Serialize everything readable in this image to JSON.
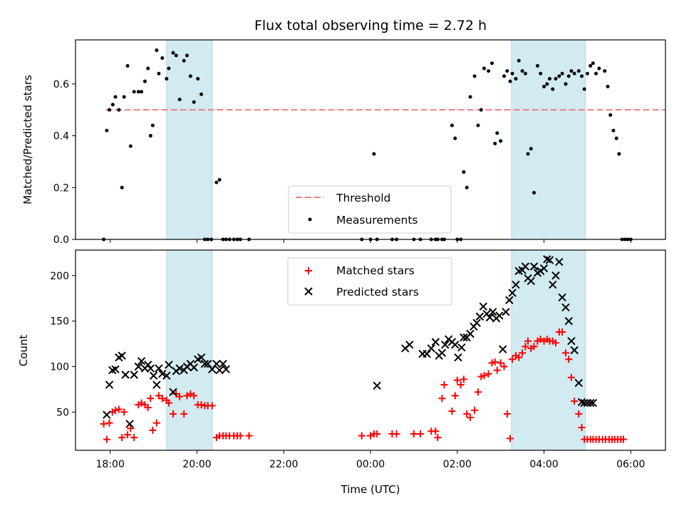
{
  "chart_data": [
    {
      "type": "scatter",
      "title": "Flux total observing time = 2.72 h",
      "xlabel": "",
      "ylabel": "Matched/Predicted stars",
      "xlim_hours": [
        17.2,
        30.8
      ],
      "ylim": [
        0,
        0.77
      ],
      "yticks": [
        0.0,
        0.2,
        0.4,
        0.6
      ],
      "ytick_labels": [
        "0.0",
        "0.2",
        "0.4",
        "0.6"
      ],
      "threshold": {
        "name": "Threshold",
        "value": 0.5,
        "x_range": [
          17.9,
          30.8
        ],
        "color": "#f08080"
      },
      "shaded_regions": [
        [
          19.3,
          20.35
        ],
        [
          27.25,
          28.95
        ]
      ],
      "shade_color": "#add8e6",
      "legend": {
        "position": "lower center",
        "entries": [
          "Threshold",
          "Measurements"
        ]
      },
      "series": [
        {
          "name": "Measurements",
          "color": "#000000",
          "x": [
            17.85,
            17.92,
            17.98,
            18.06,
            18.12,
            18.2,
            18.27,
            18.32,
            18.4,
            18.47,
            18.55,
            18.65,
            18.72,
            18.8,
            18.87,
            18.93,
            18.98,
            19.07,
            19.12,
            19.2,
            19.3,
            19.35,
            19.45,
            19.52,
            19.6,
            19.7,
            19.77,
            19.85,
            19.93,
            20.02,
            20.1,
            20.18,
            20.25,
            20.33,
            20.45,
            20.52,
            20.6,
            20.67,
            20.75,
            20.85,
            20.93,
            21.0,
            21.2,
            23.8,
            24.0,
            24.08,
            24.15,
            24.5,
            24.6,
            25.0,
            25.15,
            25.4,
            25.5,
            25.55,
            25.65,
            25.7,
            25.88,
            25.95,
            26.0,
            26.08,
            26.15,
            26.22,
            26.3,
            26.4,
            26.48,
            26.55,
            26.62,
            26.72,
            26.8,
            26.87,
            26.92,
            27.0,
            27.08,
            27.15,
            27.22,
            27.27,
            27.35,
            27.42,
            27.5,
            27.57,
            27.63,
            27.7,
            27.77,
            27.85,
            27.92,
            28.0,
            28.07,
            28.13,
            28.2,
            28.27,
            28.35,
            28.42,
            28.5,
            28.57,
            28.63,
            28.7,
            28.8,
            28.87,
            28.93,
            29.0,
            29.07,
            29.13,
            29.2,
            29.27,
            29.4,
            29.47,
            29.53,
            29.6,
            29.67,
            29.73,
            29.8,
            29.87,
            29.93,
            30.0
          ],
          "y": [
            0.0,
            0.42,
            0.5,
            0.52,
            0.55,
            0.5,
            0.2,
            0.55,
            0.67,
            0.36,
            0.57,
            0.57,
            0.57,
            0.61,
            0.66,
            0.4,
            0.44,
            0.73,
            0.64,
            0.7,
            0.62,
            0.66,
            0.72,
            0.71,
            0.54,
            0.69,
            0.71,
            0.63,
            0.53,
            0.62,
            0.56,
            0.0,
            0.0,
            0.0,
            0.22,
            0.23,
            0.0,
            0.0,
            0.0,
            0.0,
            0.0,
            0.0,
            0.0,
            0.0,
            0.0,
            0.33,
            0.0,
            0.0,
            0.0,
            0.0,
            0.0,
            0.0,
            0.0,
            0.0,
            0.0,
            0.0,
            0.44,
            0.39,
            0.0,
            0.0,
            0.26,
            0.2,
            0.55,
            0.63,
            0.44,
            0.5,
            0.66,
            0.65,
            0.68,
            0.37,
            0.41,
            0.38,
            0.63,
            0.65,
            0.61,
            0.64,
            0.62,
            0.69,
            0.65,
            0.64,
            0.33,
            0.35,
            0.18,
            0.67,
            0.64,
            0.59,
            0.6,
            0.62,
            0.58,
            0.62,
            0.63,
            0.64,
            0.6,
            0.63,
            0.65,
            0.64,
            0.65,
            0.63,
            0.58,
            0.64,
            0.67,
            0.68,
            0.64,
            0.66,
            0.65,
            0.59,
            0.48,
            0.42,
            0.39,
            0.33,
            0.0,
            0.0,
            0.0,
            0.0
          ]
        }
      ]
    },
    {
      "type": "scatter",
      "title": "",
      "xlabel": "Time (UTC)",
      "ylabel": "Count",
      "xlim_hours": [
        17.2,
        30.8
      ],
      "ylim": [
        8,
        228
      ],
      "yticks": [
        50,
        100,
        150,
        200
      ],
      "ytick_labels": [
        "50",
        "100",
        "150",
        "200"
      ],
      "xticks_hours": [
        18,
        20,
        22,
        24,
        26,
        28,
        30
      ],
      "xtick_labels": [
        "18:00",
        "20:00",
        "22:00",
        "00:00",
        "02:00",
        "04:00",
        "06:00"
      ],
      "shaded_regions": [
        [
          19.3,
          20.35
        ],
        [
          27.25,
          28.95
        ]
      ],
      "shade_color": "#add8e6",
      "legend": {
        "position": "upper center",
        "entries": [
          "Matched stars",
          "Predicted stars"
        ]
      },
      "series": [
        {
          "name": "Matched stars",
          "color": "#ff0000",
          "marker": "plus",
          "x": [
            17.85,
            17.92,
            17.98,
            18.05,
            18.12,
            18.2,
            18.27,
            18.32,
            18.4,
            18.47,
            18.55,
            18.65,
            18.72,
            18.8,
            18.87,
            18.93,
            18.98,
            19.07,
            19.12,
            19.2,
            19.3,
            19.35,
            19.45,
            19.52,
            19.6,
            19.7,
            19.77,
            19.85,
            19.93,
            20.02,
            20.1,
            20.18,
            20.25,
            20.35,
            20.45,
            20.52,
            20.6,
            20.67,
            20.75,
            20.85,
            20.93,
            21.0,
            21.2,
            23.8,
            24.0,
            24.08,
            24.15,
            24.5,
            24.6,
            25.0,
            25.15,
            25.4,
            25.5,
            25.55,
            25.65,
            25.7,
            25.88,
            25.95,
            26.0,
            26.08,
            26.15,
            26.22,
            26.3,
            26.4,
            26.48,
            26.55,
            26.62,
            26.72,
            26.8,
            26.87,
            26.92,
            27.0,
            27.08,
            27.15,
            27.22,
            27.27,
            27.35,
            27.42,
            27.5,
            27.57,
            27.63,
            27.7,
            27.77,
            27.85,
            27.92,
            28.0,
            28.07,
            28.13,
            28.2,
            28.27,
            28.35,
            28.42,
            28.5,
            28.57,
            28.63,
            28.7,
            28.8,
            28.87,
            28.93,
            29.0,
            29.07,
            29.13,
            29.2,
            29.27,
            29.35,
            29.42,
            29.5,
            29.57,
            29.63,
            29.7,
            29.77,
            29.83
          ],
          "y": [
            37,
            20,
            38,
            50,
            52,
            53,
            22,
            50,
            25,
            32,
            22,
            58,
            60,
            58,
            55,
            65,
            30,
            38,
            68,
            65,
            63,
            60,
            48,
            70,
            67,
            48,
            68,
            70,
            68,
            58,
            58,
            57,
            57,
            57,
            22,
            24,
            24,
            24,
            24,
            24,
            24,
            24,
            24,
            24,
            24,
            26,
            26,
            26,
            26,
            26,
            26,
            29,
            29,
            22,
            65,
            80,
            51,
            68,
            85,
            80,
            86,
            48,
            44,
            52,
            72,
            89,
            90,
            92,
            104,
            105,
            96,
            104,
            100,
            48,
            21,
            108,
            112,
            110,
            115,
            122,
            128,
            120,
            122,
            128,
            130,
            128,
            130,
            128,
            128,
            126,
            138,
            138,
            115,
            108,
            88,
            62,
            48,
            33,
            20,
            20,
            20,
            20,
            20,
            20,
            20,
            20,
            20,
            20,
            20,
            20,
            20,
            20
          ],
          "note": ""
        },
        {
          "name": "Predicted stars",
          "color": "#000000",
          "marker": "x",
          "x": [
            17.92,
            17.98,
            18.05,
            18.12,
            18.2,
            18.27,
            18.35,
            18.45,
            18.55,
            18.65,
            18.72,
            18.8,
            18.87,
            18.93,
            19.0,
            19.07,
            19.12,
            19.2,
            19.3,
            19.35,
            19.45,
            19.52,
            19.6,
            19.7,
            19.77,
            19.85,
            19.93,
            20.02,
            20.1,
            20.18,
            20.25,
            20.35,
            20.45,
            20.52,
            20.6,
            20.67,
            24.15,
            24.8,
            24.9,
            25.2,
            25.3,
            25.4,
            25.5,
            25.58,
            25.65,
            25.72,
            25.8,
            25.88,
            25.95,
            26.02,
            26.1,
            26.15,
            26.22,
            26.3,
            26.38,
            26.45,
            26.52,
            26.6,
            26.68,
            26.75,
            26.82,
            26.9,
            26.97,
            27.05,
            27.12,
            27.2,
            27.27,
            27.35,
            27.42,
            27.5,
            27.57,
            27.63,
            27.7,
            27.77,
            27.85,
            27.92,
            28.0,
            28.07,
            28.13,
            28.2,
            28.27,
            28.35,
            28.42,
            28.5,
            28.57,
            28.63,
            28.7,
            28.8,
            28.87,
            28.93,
            29.0,
            29.07,
            29.13
          ],
          "y": [
            47,
            80,
            96,
            97,
            110,
            112,
            91,
            37,
            91,
            100,
            106,
            98,
            102,
            98,
            90,
            80,
            98,
            92,
            90,
            102,
            72,
            95,
            98,
            96,
            100,
            103,
            99,
            108,
            110,
            103,
            103,
            97,
            103,
            96,
            103,
            97,
            79,
            120,
            124,
            114,
            114,
            120,
            127,
            112,
            115,
            124,
            130,
            127,
            124,
            110,
            121,
            132,
            132,
            136,
            144,
            148,
            155,
            166,
            158,
            154,
            160,
            153,
            156,
            119,
            160,
            173,
            181,
            190,
            205,
            206,
            210,
            197,
            194,
            210,
            203,
            205,
            208,
            218,
            217,
            190,
            200,
            215,
            176,
            165,
            150,
            128,
            118,
            82,
            61,
            60,
            60,
            60,
            60
          ],
          "note": ""
        }
      ]
    }
  ]
}
